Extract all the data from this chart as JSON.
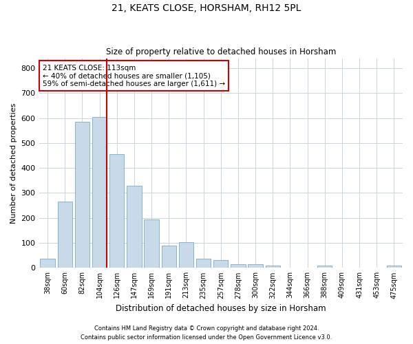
{
  "title1": "21, KEATS CLOSE, HORSHAM, RH12 5PL",
  "title2": "Size of property relative to detached houses in Horsham",
  "xlabel": "Distribution of detached houses by size in Horsham",
  "ylabel": "Number of detached properties",
  "categories": [
    "38sqm",
    "60sqm",
    "82sqm",
    "104sqm",
    "126sqm",
    "147sqm",
    "169sqm",
    "191sqm",
    "213sqm",
    "235sqm",
    "257sqm",
    "278sqm",
    "300sqm",
    "322sqm",
    "344sqm",
    "366sqm",
    "388sqm",
    "409sqm",
    "431sqm",
    "453sqm",
    "475sqm"
  ],
  "values": [
    38,
    265,
    585,
    605,
    455,
    330,
    195,
    88,
    102,
    37,
    32,
    15,
    15,
    10,
    0,
    0,
    8,
    0,
    0,
    0,
    8
  ],
  "bar_color": "#c8daea",
  "bar_edge_color": "#7aaac8",
  "grid_color": "#c8d4e0",
  "vline_color": "#cc0000",
  "vline_x_idx": 3.43,
  "annotation_text": "21 KEATS CLOSE: 113sqm\n← 40% of detached houses are smaller (1,105)\n59% of semi-detached houses are larger (1,611) →",
  "annotation_box_color": "#ffffff",
  "annotation_box_edge": "#cc0000",
  "ylim": [
    0,
    840
  ],
  "yticks": [
    0,
    100,
    200,
    300,
    400,
    500,
    600,
    700,
    800
  ],
  "footer1": "Contains HM Land Registry data © Crown copyright and database right 2024.",
  "footer2": "Contains public sector information licensed under the Open Government Licence v3.0.",
  "background_color": "#ffffff",
  "plot_bg_color": "#ffffff"
}
